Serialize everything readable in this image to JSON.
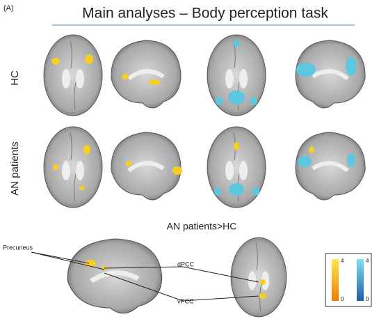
{
  "panel_label": "(A)",
  "title": "Main analyses – Body perception task",
  "row_labels": [
    "HC",
    "AN patients"
  ],
  "contrast_title": "AN patients>HC",
  "region_labels": [
    "Precuneus",
    "dPCC",
    "vPCC"
  ],
  "colorbars": [
    {
      "max": "4",
      "min": "0"
    },
    {
      "max": "4",
      "min": "0"
    }
  ]
}
